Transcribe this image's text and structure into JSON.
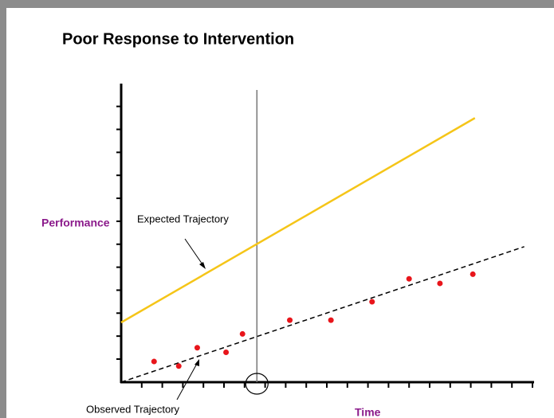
{
  "chart_data": {
    "type": "scatter",
    "title": "Poor Response to Intervention",
    "xlabel": "Time",
    "ylabel": "Performance",
    "xlim": [
      0,
      20
    ],
    "ylim": [
      0,
      13
    ],
    "intervention_x": 6.6,
    "series": [
      {
        "name": "Expected Trajectory",
        "kind": "line",
        "color": "#f5c518",
        "x": [
          0,
          17.2
        ],
        "values": [
          2.6,
          11.5
        ]
      },
      {
        "name": "Observed Trajectory",
        "kind": "dashed",
        "color": "#000000",
        "x": [
          0,
          19.6
        ],
        "values": [
          0,
          5.9
        ]
      },
      {
        "kind": "points",
        "color": "#e8151b",
        "x": [
          1.6,
          2.8,
          3.7,
          5.1,
          5.9,
          8.2,
          10.2,
          12.2,
          14.0,
          15.5,
          17.1
        ],
        "values": [
          0.9,
          0.7,
          1.5,
          1.3,
          2.1,
          2.7,
          2.7,
          3.5,
          4.5,
          4.3,
          4.7
        ]
      }
    ]
  }
}
